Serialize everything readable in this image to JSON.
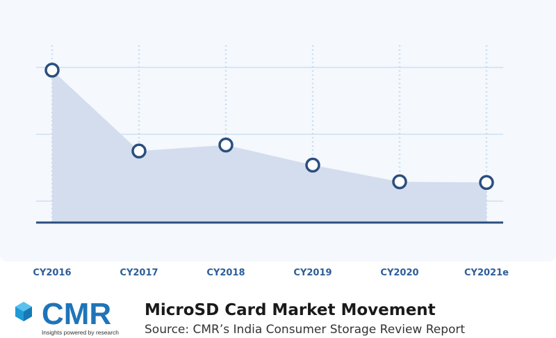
{
  "chart_data": {
    "type": "area",
    "title": "MicroSD Card Market Movement",
    "subtitle": "Source: CMR’s India Consumer Storage Review Report",
    "logo": {
      "name": "CMR",
      "tagline": "Insights powered by research"
    },
    "categories": [
      "CY2016",
      "CY2017",
      "CY2018",
      "CY2019",
      "CY2020",
      "CY2021e"
    ],
    "values": [
      2.96,
      1.75,
      1.84,
      1.54,
      1.29,
      1.28
    ],
    "color": "#d3ddee",
    "marker_color": "#2b4e7e",
    "ylim": [
      0.68,
      3.5
    ],
    "yticks": [
      1,
      2,
      3
    ],
    "grid": true
  }
}
